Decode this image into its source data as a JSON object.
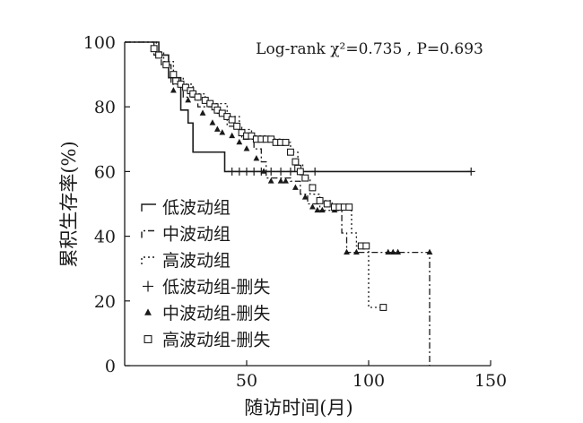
{
  "chart_data": {
    "type": "line",
    "title": "",
    "annotation": "Log-rank χ²=0.735 , P=0.693",
    "xlabel": "随访时间(月)",
    "ylabel": "累积生存率(%)",
    "xlim": [
      0,
      150
    ],
    "ylim": [
      0,
      100
    ],
    "xticks": [
      50,
      100,
      150
    ],
    "yticks": [
      0,
      20,
      40,
      60,
      80,
      100
    ],
    "legend_position": "bottom-left",
    "grid": false,
    "series": [
      {
        "name": "低波动组",
        "line_style": "solid",
        "censor_marker": "plus",
        "censor_label": "低波动组-删失",
        "steps": [
          [
            0,
            100
          ],
          [
            10,
            100
          ],
          [
            14,
            96
          ],
          [
            18,
            89
          ],
          [
            23,
            79
          ],
          [
            26,
            75
          ],
          [
            28,
            66
          ],
          [
            40,
            66
          ],
          [
            41,
            60
          ],
          [
            142,
            60
          ]
        ],
        "censored": [
          [
            44,
            60
          ],
          [
            47,
            60
          ],
          [
            50,
            60
          ],
          [
            53,
            60
          ],
          [
            56,
            60
          ],
          [
            60,
            60
          ],
          [
            64,
            60
          ],
          [
            68,
            60
          ],
          [
            72,
            60
          ],
          [
            78,
            60
          ],
          [
            142,
            60
          ]
        ]
      },
      {
        "name": "中波动组",
        "line_style": "dashdot",
        "censor_marker": "triangle",
        "censor_label": "中波动组-删失",
        "steps": [
          [
            0,
            100
          ],
          [
            10,
            100
          ],
          [
            12,
            96
          ],
          [
            15,
            93
          ],
          [
            19,
            87
          ],
          [
            24,
            83
          ],
          [
            30,
            80
          ],
          [
            38,
            78
          ],
          [
            42,
            74
          ],
          [
            48,
            70
          ],
          [
            53,
            67
          ],
          [
            56,
            63
          ],
          [
            58,
            58
          ],
          [
            68,
            57
          ],
          [
            72,
            53
          ],
          [
            75,
            50
          ],
          [
            80,
            48
          ],
          [
            88,
            48
          ],
          [
            89,
            41
          ],
          [
            91,
            35
          ],
          [
            125,
            35
          ],
          [
            125,
            0
          ]
        ],
        "censored": [
          [
            20,
            85
          ],
          [
            26,
            82
          ],
          [
            32,
            78
          ],
          [
            36,
            75
          ],
          [
            38,
            73
          ],
          [
            40,
            72
          ],
          [
            44,
            71
          ],
          [
            47,
            69
          ],
          [
            50,
            67
          ],
          [
            54,
            64
          ],
          [
            57,
            60
          ],
          [
            60,
            57
          ],
          [
            64,
            57
          ],
          [
            66,
            57
          ],
          [
            70,
            55
          ],
          [
            74,
            52
          ],
          [
            77,
            49
          ],
          [
            79,
            48
          ],
          [
            81,
            48
          ],
          [
            86,
            48
          ],
          [
            91,
            35
          ],
          [
            95,
            35
          ],
          [
            108,
            35
          ],
          [
            110,
            35
          ],
          [
            112,
            35
          ],
          [
            125,
            35
          ]
        ]
      },
      {
        "name": "高波动组",
        "line_style": "dotted",
        "censor_marker": "square",
        "censor_label": "高波动组-删失",
        "steps": [
          [
            0,
            100
          ],
          [
            10,
            100
          ],
          [
            13,
            97
          ],
          [
            16,
            94
          ],
          [
            20,
            89
          ],
          [
            24,
            87
          ],
          [
            28,
            84
          ],
          [
            33,
            81
          ],
          [
            42,
            77
          ],
          [
            47,
            73
          ],
          [
            52,
            71
          ],
          [
            58,
            70
          ],
          [
            64,
            69
          ],
          [
            68,
            66
          ],
          [
            71,
            62
          ],
          [
            73,
            58
          ],
          [
            76,
            53
          ],
          [
            80,
            51
          ],
          [
            85,
            49
          ],
          [
            92,
            49
          ],
          [
            93,
            41
          ],
          [
            95,
            37
          ],
          [
            100,
            37
          ],
          [
            100,
            18
          ],
          [
            106,
            18
          ]
        ],
        "censored": [
          [
            12,
            98
          ],
          [
            14,
            96
          ],
          [
            17,
            93
          ],
          [
            20,
            90
          ],
          [
            21,
            88
          ],
          [
            23,
            87
          ],
          [
            25,
            86
          ],
          [
            27,
            85
          ],
          [
            28,
            84
          ],
          [
            30,
            83
          ],
          [
            33,
            82
          ],
          [
            35,
            81
          ],
          [
            37,
            80
          ],
          [
            38,
            79
          ],
          [
            40,
            78
          ],
          [
            42,
            77
          ],
          [
            44,
            76
          ],
          [
            46,
            74
          ],
          [
            48,
            72
          ],
          [
            50,
            71
          ],
          [
            52,
            71
          ],
          [
            54,
            70
          ],
          [
            56,
            70
          ],
          [
            58,
            70
          ],
          [
            60,
            70
          ],
          [
            62,
            69
          ],
          [
            64,
            69
          ],
          [
            66,
            69
          ],
          [
            68,
            66
          ],
          [
            70,
            63
          ],
          [
            71,
            61
          ],
          [
            72,
            60
          ],
          [
            74,
            58
          ],
          [
            77,
            55
          ],
          [
            80,
            51
          ],
          [
            83,
            50
          ],
          [
            86,
            49
          ],
          [
            88,
            49
          ],
          [
            90,
            49
          ],
          [
            92,
            49
          ],
          [
            97,
            37
          ],
          [
            99,
            37
          ],
          [
            106,
            18
          ]
        ]
      }
    ]
  }
}
